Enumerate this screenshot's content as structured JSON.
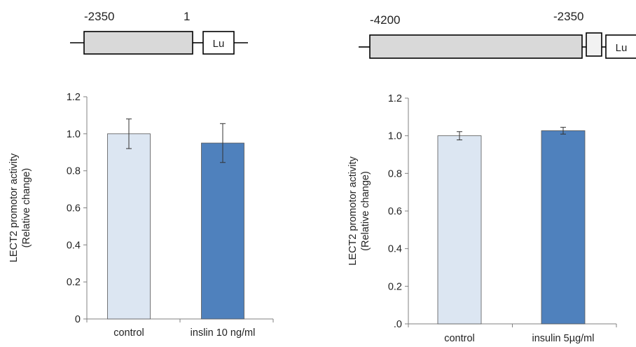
{
  "constructs": [
    {
      "start_label": "-2350",
      "end_label": "1",
      "reporter_label": "Lu"
    },
    {
      "start_label": "-4200",
      "end_label": "-2350",
      "reporter_label": "Lu"
    }
  ],
  "chart_data": [
    {
      "type": "bar",
      "categories": [
        "control",
        "inslin 10 ng/ml"
      ],
      "values": [
        1.0,
        0.95
      ],
      "errors": [
        0.08,
        0.105
      ],
      "ylabel": [
        "LECT2 promotor activity",
        "(Relative change)"
      ],
      "ylim": [
        0,
        1.2
      ],
      "yticks": [
        "0",
        "0.2",
        "0.4",
        "0.6",
        "0.8",
        "1.0",
        "1.2"
      ],
      "bar_colors": [
        "#dce6f2",
        "#4f81bd"
      ],
      "grid": false
    },
    {
      "type": "bar",
      "categories": [
        "control",
        "insulin 5µg/ml"
      ],
      "values": [
        1.0,
        1.027
      ],
      "errors": [
        0.022,
        0.018
      ],
      "ylabel": [
        "LECT2 promotor activity",
        "(Relative change)"
      ],
      "ylim": [
        0,
        1.2
      ],
      "yticks": [
        ".0",
        "0.2",
        "0.4",
        "0.6",
        "0.8",
        "1.0",
        "1.2"
      ],
      "bar_colors": [
        "#dce6f2",
        "#4f81bd"
      ],
      "grid": false
    }
  ]
}
